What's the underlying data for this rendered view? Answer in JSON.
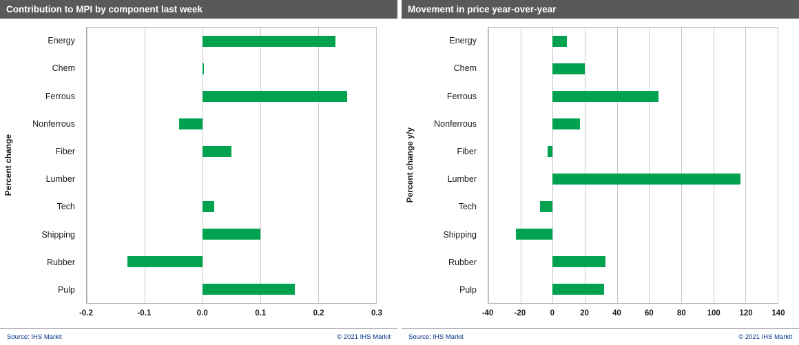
{
  "panels": [
    {
      "title": "Contribution to MPI by component last week",
      "source": "Source:  IHS Markit",
      "copyright": "© 2021  IHS Markit"
    },
    {
      "title": "Movement in price year-over-year",
      "source": "Source:  IHS Markit",
      "copyright": "© 2021  IHS Markit"
    }
  ],
  "chart_data": [
    {
      "type": "bar",
      "orientation": "horizontal",
      "title": "Contribution to MPI by component last week",
      "ylabel": "Percent change",
      "xlabel": "",
      "categories": [
        "Energy",
        "Chem",
        "Ferrous",
        "Nonferrous",
        "Fiber",
        "Lumber",
        "Tech",
        "Shipping",
        "Rubber",
        "Pulp"
      ],
      "values": [
        0.23,
        0.002,
        0.25,
        -0.04,
        0.05,
        0,
        0.02,
        0.1,
        -0.13,
        0.16
      ],
      "xlim": [
        -0.2,
        0.3
      ],
      "xtick_values": [
        -0.2,
        -0.1,
        0,
        0.1,
        0.2,
        0.3
      ],
      "xtick_labels": [
        "-0.2",
        "-0.1",
        "0.0",
        "0.1",
        "0.2",
        "0.3"
      ],
      "grid": true,
      "legend": "none",
      "bar_color": "#00A24F"
    },
    {
      "type": "bar",
      "orientation": "horizontal",
      "title": "Movement in price year-over-year",
      "ylabel": "Percent change y/y",
      "xlabel": "",
      "categories": [
        "Energy",
        "Chem",
        "Ferrous",
        "Nonferrous",
        "Fiber",
        "Lumber",
        "Tech",
        "Shipping",
        "Rubber",
        "Pulp"
      ],
      "values": [
        9,
        20,
        66,
        17,
        -3,
        117,
        -8,
        -23,
        33,
        32
      ],
      "xlim": [
        -40,
        140
      ],
      "xtick_values": [
        -40,
        -20,
        0,
        20,
        40,
        60,
        80,
        100,
        120,
        140
      ],
      "xtick_labels": [
        "-40",
        "-20",
        "0",
        "20",
        "40",
        "60",
        "80",
        "100",
        "120",
        "140"
      ],
      "grid": true,
      "legend": "none",
      "bar_color": "#00A24F"
    }
  ],
  "colors": {
    "header_bg": "#58595b",
    "header_text": "#ffffff",
    "bar_green": "#00A24F",
    "gridline": "#c9c9c9",
    "footer_text_navy": "#003087"
  }
}
